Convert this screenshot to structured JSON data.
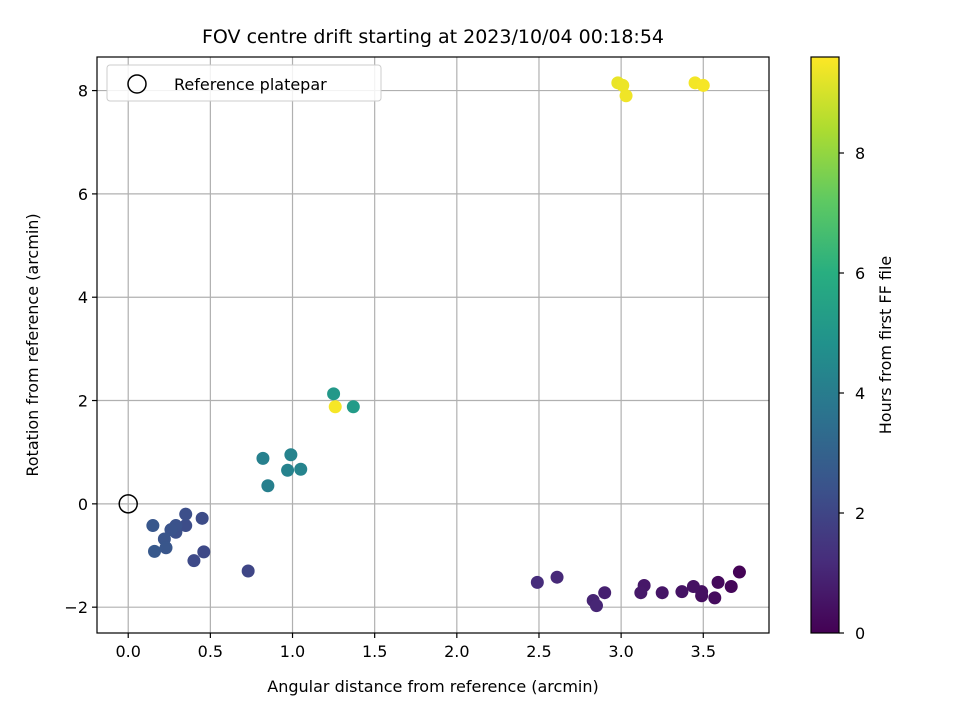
{
  "chart_data": {
    "type": "scatter",
    "title": "FOV centre drift starting at 2023/10/04 00:18:54",
    "xlabel": "Angular distance from reference (arcmin)",
    "ylabel": "Rotation from reference (arcmin)",
    "xlim": [
      -0.19,
      3.9
    ],
    "ylim": [
      -2.5,
      8.65
    ],
    "xticks": [
      0.0,
      0.5,
      1.0,
      1.5,
      2.0,
      2.5,
      3.0,
      3.5
    ],
    "xtick_labels": [
      "0.0",
      "0.5",
      "1.0",
      "1.5",
      "2.0",
      "2.5",
      "3.0",
      "3.5"
    ],
    "yticks": [
      -2,
      0,
      2,
      4,
      6,
      8
    ],
    "ytick_labels": [
      "−2",
      "0",
      "2",
      "4",
      "6",
      "8"
    ],
    "grid": true,
    "legend": {
      "placement": "top-left",
      "entries": [
        "Reference platepar"
      ]
    },
    "reference_point": {
      "x": 0.0,
      "y": 0.0,
      "label": "Reference platepar"
    },
    "colorbar": {
      "label": "Hours from first FF file",
      "colormap": "viridis",
      "range": [
        0,
        9.6
      ],
      "ticks": [
        0,
        2,
        4,
        6,
        8
      ],
      "tick_labels": [
        "0",
        "2",
        "4",
        "6",
        "8"
      ]
    },
    "points": [
      {
        "x": 3.72,
        "y": -1.32,
        "hours": 0.05
      },
      {
        "x": 3.67,
        "y": -1.6,
        "hours": 0.15
      },
      {
        "x": 3.59,
        "y": -1.52,
        "hours": 0.25
      },
      {
        "x": 3.57,
        "y": -1.82,
        "hours": 0.3
      },
      {
        "x": 3.49,
        "y": -1.78,
        "hours": 0.35
      },
      {
        "x": 3.49,
        "y": -1.7,
        "hours": 0.4
      },
      {
        "x": 3.44,
        "y": -1.6,
        "hours": 0.45
      },
      {
        "x": 3.37,
        "y": -1.7,
        "hours": 0.5
      },
      {
        "x": 3.25,
        "y": -1.72,
        "hours": 0.55
      },
      {
        "x": 3.14,
        "y": -1.58,
        "hours": 0.6
      },
      {
        "x": 3.12,
        "y": -1.72,
        "hours": 0.65
      },
      {
        "x": 2.9,
        "y": -1.72,
        "hours": 0.85
      },
      {
        "x": 2.83,
        "y": -1.87,
        "hours": 0.95
      },
      {
        "x": 2.85,
        "y": -1.97,
        "hours": 1.0
      },
      {
        "x": 2.61,
        "y": -1.42,
        "hours": 1.1
      },
      {
        "x": 2.49,
        "y": -1.52,
        "hours": 1.2
      },
      {
        "x": 0.73,
        "y": -1.3,
        "hours": 2.0
      },
      {
        "x": 0.46,
        "y": -0.93,
        "hours": 2.1
      },
      {
        "x": 0.4,
        "y": -1.1,
        "hours": 2.15
      },
      {
        "x": 0.45,
        "y": -0.28,
        "hours": 2.2
      },
      {
        "x": 0.35,
        "y": -0.42,
        "hours": 2.25
      },
      {
        "x": 0.35,
        "y": -0.2,
        "hours": 2.3
      },
      {
        "x": 0.29,
        "y": -0.55,
        "hours": 2.35
      },
      {
        "x": 0.29,
        "y": -0.42,
        "hours": 2.4
      },
      {
        "x": 0.26,
        "y": -0.5,
        "hours": 2.45
      },
      {
        "x": 0.22,
        "y": -0.68,
        "hours": 2.5
      },
      {
        "x": 0.23,
        "y": -0.85,
        "hours": 2.55
      },
      {
        "x": 0.15,
        "y": -0.42,
        "hours": 2.6
      },
      {
        "x": 0.16,
        "y": -0.92,
        "hours": 2.65
      },
      {
        "x": 0.85,
        "y": 0.35,
        "hours": 4.1
      },
      {
        "x": 0.82,
        "y": 0.88,
        "hours": 4.15
      },
      {
        "x": 0.97,
        "y": 0.65,
        "hours": 4.2
      },
      {
        "x": 0.99,
        "y": 0.95,
        "hours": 4.25
      },
      {
        "x": 1.05,
        "y": 0.67,
        "hours": 4.3
      },
      {
        "x": 1.25,
        "y": 2.13,
        "hours": 5.1
      },
      {
        "x": 1.37,
        "y": 1.88,
        "hours": 5.2
      },
      {
        "x": 1.26,
        "y": 1.88,
        "hours": 9.5
      },
      {
        "x": 2.98,
        "y": 8.15,
        "hours": 9.3
      },
      {
        "x": 3.01,
        "y": 8.1,
        "hours": 9.35
      },
      {
        "x": 3.03,
        "y": 7.9,
        "hours": 9.4
      },
      {
        "x": 3.45,
        "y": 8.15,
        "hours": 9.45
      },
      {
        "x": 3.5,
        "y": 8.1,
        "hours": 9.5
      }
    ]
  }
}
